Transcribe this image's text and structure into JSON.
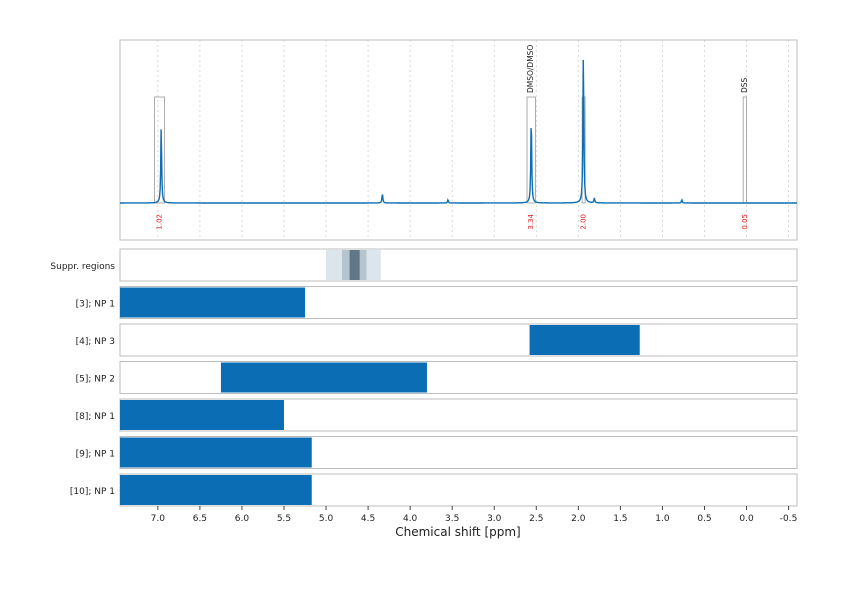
{
  "chart_data": {
    "type": "line",
    "xlabel": "Chemical shift [ppm]",
    "x_reversed": true,
    "xlim": [
      7.45,
      -0.6
    ],
    "x_ticks": [
      7.0,
      6.5,
      6.0,
      5.5,
      5.0,
      4.5,
      4.0,
      3.5,
      3.0,
      2.5,
      2.0,
      1.5,
      1.0,
      0.5,
      0.0,
      -0.5
    ],
    "x_tick_labels": [
      "7.0",
      "6.5",
      "6.0",
      "5.5",
      "5.0",
      "4.5",
      "4.0",
      "3.5",
      "3.0",
      "2.5",
      "2.0",
      "1.5",
      "1.0",
      "0.5",
      "0.0",
      "-0.5"
    ],
    "grid": true,
    "spectrum": {
      "color": "#0B6EB4",
      "peaks": [
        {
          "x": 6.96,
          "height": 0.48
        },
        {
          "x": 4.33,
          "height": 0.06
        },
        {
          "x": 3.55,
          "height": 0.02
        },
        {
          "x": 2.56,
          "height": 0.55
        },
        {
          "x": 1.94,
          "height": 0.95
        },
        {
          "x": 1.81,
          "height": 0.03
        },
        {
          "x": 0.77,
          "height": 0.02
        }
      ]
    },
    "signal_regions": [
      {
        "label": "1.02",
        "x_from": 7.04,
        "x_to": 6.92
      },
      {
        "label": "3.34",
        "x_from": 2.61,
        "x_to": 2.51,
        "annotation": "DMSO/DMSO"
      },
      {
        "label": "2.00",
        "x_from": 1.955,
        "x_to": 1.925
      },
      {
        "label": "0.05",
        "x_from": 0.04,
        "x_to": 0.0,
        "annotation": "DSS"
      }
    ],
    "suppression_row": {
      "label": "Suppr. regions",
      "bands": [
        {
          "x_from": 5.0,
          "x_to": 4.35,
          "shade": "#dde5ec"
        },
        {
          "x_from": 4.81,
          "x_to": 4.52,
          "shade": "#b6c4d0"
        },
        {
          "x_from": 4.72,
          "x_to": 4.6,
          "shade": "#5f7787"
        }
      ]
    },
    "range_rows": [
      {
        "label": "[3]; NP 1",
        "x_from": 7.45,
        "x_to": 5.25
      },
      {
        "label": "[4]; NP 3",
        "x_from": 2.58,
        "x_to": 1.27
      },
      {
        "label": "[5]; NP 2",
        "x_from": 6.25,
        "x_to": 3.8
      },
      {
        "label": "[8]; NP 1",
        "x_from": 7.45,
        "x_to": 5.5
      },
      {
        "label": "[9]; NP 1",
        "x_from": 7.45,
        "x_to": 5.17
      },
      {
        "label": "[10]; NP 1",
        "x_from": 7.45,
        "x_to": 5.17
      }
    ],
    "bar_color": "#0B6EB4",
    "region_label_color": "#e41a1c"
  }
}
